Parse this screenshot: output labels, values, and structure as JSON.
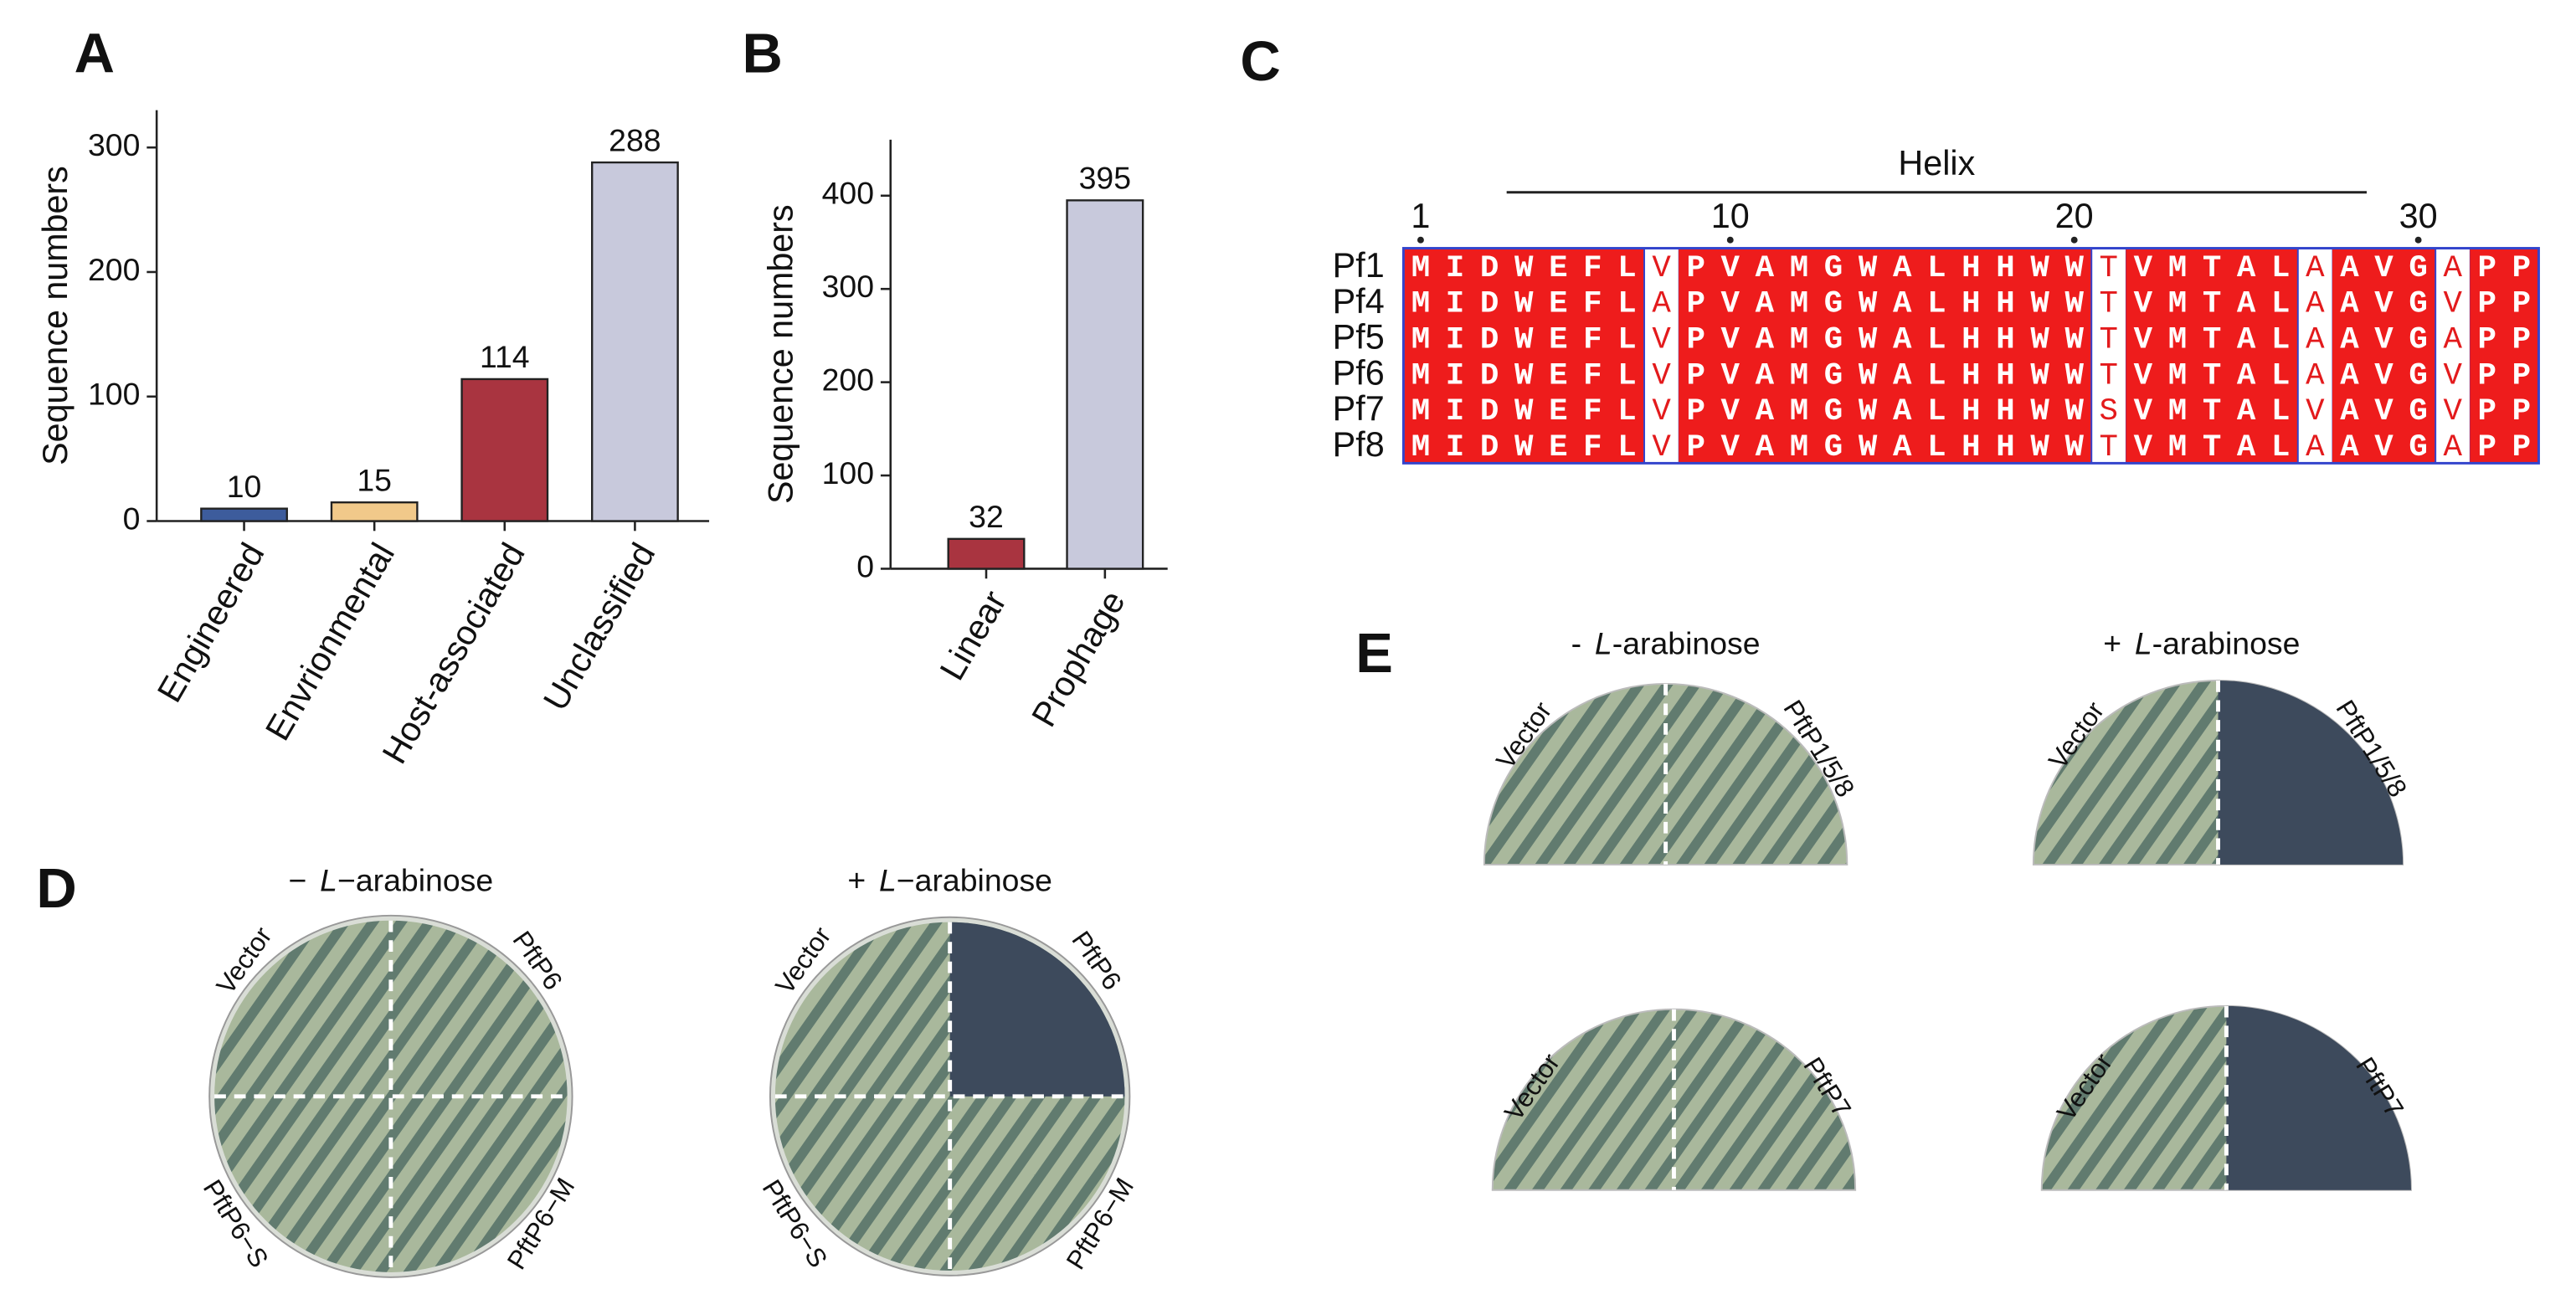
{
  "panel_labels": [
    "A",
    "B",
    "C",
    "D",
    "E"
  ],
  "chart_data": [
    {
      "type": "bar",
      "ylabel": "Sequence numbers",
      "categories": [
        "Engineered",
        "Envrionmental",
        "Host-associated",
        "Unclassified"
      ],
      "values": [
        10,
        15,
        114,
        288
      ],
      "colors": [
        "#3d5c9c",
        "#f1c98a",
        "#a93440",
        "#c8c9dc"
      ],
      "ylim": [
        0,
        330
      ],
      "yticks": [
        0,
        100,
        200,
        300
      ]
    },
    {
      "type": "bar",
      "ylabel": "Sequence numbers",
      "categories": [
        "Linear",
        "Prophage"
      ],
      "values": [
        32,
        395
      ],
      "colors": [
        "#a93440",
        "#c8c9dc"
      ],
      "ylim": [
        0,
        460
      ],
      "yticks": [
        0,
        100,
        200,
        300,
        400
      ]
    }
  ],
  "alignment": {
    "title": "Helix",
    "positions": [
      1,
      10,
      20,
      30
    ],
    "rows": [
      {
        "name": "Pf1",
        "sequence": "MIDWEFLVPVAMGWALHHWWTVMTALAAVGAPP"
      },
      {
        "name": "Pf4",
        "sequence": "MIDWEFLAPVAMGWALHHWWTVMTALAAVGVPP"
      },
      {
        "name": "Pf5",
        "sequence": "MIDWEFLVPVAMGWALHHWWTVMTALAAVGAPP"
      },
      {
        "name": "Pf6",
        "sequence": "MIDWEFLVPVAMGWALHHWWTVMTALAAVGVPP"
      },
      {
        "name": "Pf7",
        "sequence": "MIDWEFLVPVAMGWALHHWWSVMTALVAVGVPP"
      },
      {
        "name": "Pf8",
        "sequence": "MIDWEFLVPVAMGWALHHWWTVMTALAAVGAPP"
      }
    ]
  },
  "plates": {
    "D": {
      "conditions": [
        {
          "sign": "−",
          "italic": "L",
          "rest": "−arabinose"
        },
        {
          "sign": "+",
          "italic": "L",
          "rest": "−arabinose"
        }
      ],
      "labels": [
        "Vector",
        "PftP6",
        "PftP6−S",
        "PftP6−M"
      ]
    },
    "E": {
      "conditions": [
        {
          "sign": "-",
          "italic": "L",
          "rest": "-arabinose"
        },
        {
          "sign": "+",
          "italic": "L",
          "rest": "-arabinose"
        }
      ],
      "top_labels": [
        "Vector",
        "PftP1/5/8"
      ],
      "bottom_labels": [
        "Vector",
        "PftP7"
      ]
    }
  }
}
